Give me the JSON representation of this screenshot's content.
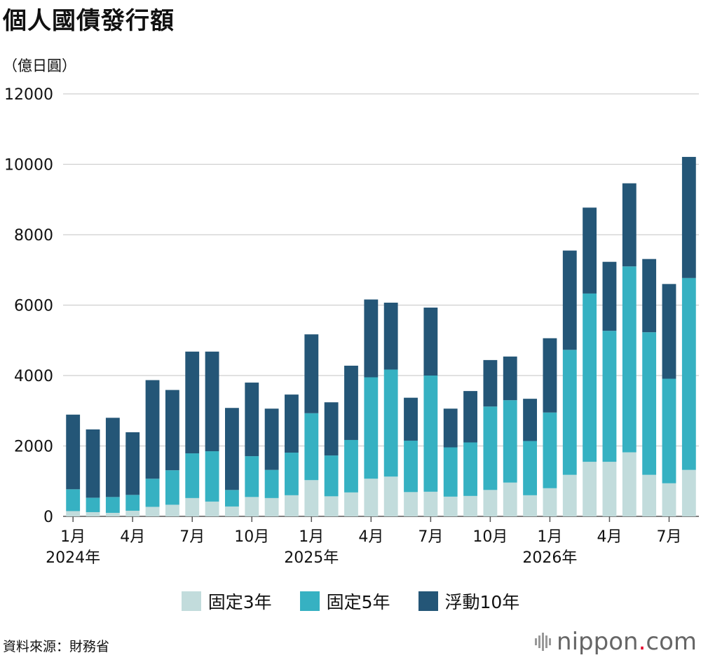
{
  "title": "個人國債發行額",
  "unit_label": "（億日圓）",
  "chart_data": {
    "type": "bar",
    "stacked": true,
    "ylim": [
      0,
      12000
    ],
    "yticks": [
      0,
      2000,
      4000,
      6000,
      8000,
      10000,
      12000
    ],
    "x_tick_labels": [
      {
        "index": 0,
        "month": "1月",
        "year": "2024年"
      },
      {
        "index": 3,
        "month": "4月",
        "year": ""
      },
      {
        "index": 6,
        "month": "7月",
        "year": ""
      },
      {
        "index": 9,
        "month": "10月",
        "year": ""
      },
      {
        "index": 12,
        "month": "1月",
        "year": "2025年"
      },
      {
        "index": 15,
        "month": "4月",
        "year": ""
      },
      {
        "index": 18,
        "month": "7月",
        "year": ""
      },
      {
        "index": 21,
        "month": "10月",
        "year": ""
      },
      {
        "index": 24,
        "month": "1月",
        "year": "2026年"
      },
      {
        "index": 27,
        "month": "4月",
        "year": ""
      },
      {
        "index": 30,
        "month": "7月",
        "year": ""
      }
    ],
    "categories": [
      "2024-01",
      "2024-02",
      "2024-03",
      "2024-04",
      "2024-05",
      "2024-06",
      "2024-07",
      "2024-08",
      "2024-09",
      "2024-10",
      "2024-11",
      "2024-12",
      "2025-01",
      "2025-02",
      "2025-03",
      "2025-04",
      "2025-05",
      "2025-06",
      "2025-07",
      "2025-08",
      "2025-09",
      "2025-10",
      "2025-11",
      "2025-12",
      "2026-01",
      "2026-02",
      "2026-03",
      "2026-04",
      "2026-05",
      "2026-06",
      "2026-07",
      "2026-08"
    ],
    "series": [
      {
        "name": "固定3年",
        "color": "#c2dcdc",
        "values": [
          150,
          120,
          100,
          160,
          270,
          330,
          520,
          420,
          280,
          550,
          520,
          600,
          1030,
          570,
          680,
          1070,
          1130,
          690,
          700,
          560,
          580,
          750,
          960,
          600,
          800,
          1180,
          1550,
          1550,
          1820,
          1180,
          940,
          1320
        ]
      },
      {
        "name": "固定5年",
        "color": "#36b1c2",
        "values": [
          620,
          410,
          450,
          450,
          800,
          980,
          1270,
          1430,
          470,
          1160,
          800,
          1210,
          1900,
          1160,
          1490,
          2880,
          3040,
          1460,
          3300,
          1400,
          1520,
          2370,
          2340,
          1540,
          2150,
          3550,
          4780,
          3720,
          5280,
          4050,
          2970,
          5450
        ]
      },
      {
        "name": "浮動10年",
        "color": "#245677",
        "values": [
          2120,
          1940,
          2250,
          1780,
          2800,
          2280,
          2890,
          2830,
          2330,
          2090,
          1740,
          1650,
          2240,
          1510,
          2110,
          2210,
          1900,
          1220,
          1930,
          1100,
          1460,
          1320,
          1240,
          1200,
          2110,
          2820,
          2440,
          1960,
          2360,
          2080,
          2690,
          3440
        ]
      }
    ]
  },
  "source": "資料來源：財務省",
  "brand": {
    "name": "nippon",
    "dot": ".",
    "suffix": "com"
  }
}
